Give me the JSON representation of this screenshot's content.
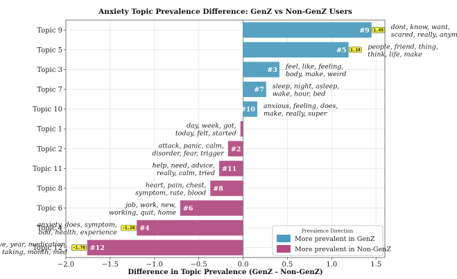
{
  "chart_data": {
    "type": "bar",
    "orientation": "horizontal",
    "title": "Anxiety Topic Prevalence Difference: GenZ vs Non-GenZ Users",
    "xlabel": "Difference in Topic Prevalence (GenZ - Non-GenZ)",
    "ylabel": "",
    "xlim": [
      -2.0,
      1.6
    ],
    "xticks": [
      {
        "value": -2.0,
        "label": "−2.0"
      },
      {
        "value": -1.5,
        "label": "−1.5"
      },
      {
        "value": -1.0,
        "label": "−1.0"
      },
      {
        "value": -0.5,
        "label": "−0.5"
      },
      {
        "value": 0.0,
        "label": "0.0"
      },
      {
        "value": 0.5,
        "label": "0.5"
      },
      {
        "value": 1.0,
        "label": "1.0"
      },
      {
        "value": 1.5,
        "label": "1.5"
      }
    ],
    "grid": true,
    "colors": {
      "genz": "#4e9dbd",
      "nongenz": "#b34d83",
      "badge": "#f2ef3a"
    },
    "legend": {
      "title": "Prevalence Direction",
      "position": "bottom-right",
      "entries": [
        "More prevalent in GenZ",
        "More prevalent in Non-GenZ"
      ]
    },
    "bars": [
      {
        "category": "Topic 9",
        "value": 1.45,
        "bar_label": "#9",
        "badge": "1.45",
        "keywords": [
          "dont, know, want,",
          "scared, really, anymore"
        ]
      },
      {
        "category": "Topic 5",
        "value": 1.19,
        "bar_label": "#5",
        "badge": "1.19",
        "keywords": [
          "people, friend, thing,",
          "think, life, make"
        ]
      },
      {
        "category": "Topic 3",
        "value": 0.41,
        "bar_label": "#3",
        "badge": "",
        "keywords": [
          "feel, like, feeling,",
          "body, make, weird"
        ]
      },
      {
        "category": "Topic 7",
        "value": 0.26,
        "bar_label": "#7",
        "badge": "",
        "keywords": [
          "sleep, night, asleep,",
          "wake, hour, bed"
        ]
      },
      {
        "category": "Topic 10",
        "value": 0.16,
        "bar_label": "#10",
        "badge": "",
        "keywords": [
          "anxious, feeling, does,",
          "make, really, super"
        ]
      },
      {
        "category": "Topic 1",
        "value": -0.03,
        "bar_label": "",
        "badge": "",
        "keywords": [
          "day, week, got,",
          "today, felt, started"
        ]
      },
      {
        "category": "Topic 2",
        "value": -0.17,
        "bar_label": "#2",
        "badge": "",
        "keywords": [
          "attack, panic, calm,",
          "disorder, fear, trigger"
        ]
      },
      {
        "category": "Topic 11",
        "value": -0.27,
        "bar_label": "#11",
        "badge": "",
        "keywords": [
          "help, need, advice,",
          "really, calm, tried"
        ]
      },
      {
        "category": "Topic 8",
        "value": -0.37,
        "bar_label": "#8",
        "badge": "",
        "keywords": [
          "heart, pain, chest,",
          "symptom, rate, blood"
        ]
      },
      {
        "category": "Topic 6",
        "value": -0.71,
        "bar_label": "#6",
        "badge": "",
        "keywords": [
          "job, work, new,",
          "working, quit, home"
        ]
      },
      {
        "category": "Topic 4",
        "value": -1.2,
        "bar_label": "#4",
        "badge": "-1.20",
        "keywords": [
          "anxiety, does, symptom,",
          "bad, health, experience"
        ]
      },
      {
        "category": "Topic 12",
        "value": -1.76,
        "bar_label": "#12",
        "badge": "-1.76",
        "keywords": [
          "ive, year, medication,",
          "taking, month, med"
        ]
      }
    ]
  }
}
